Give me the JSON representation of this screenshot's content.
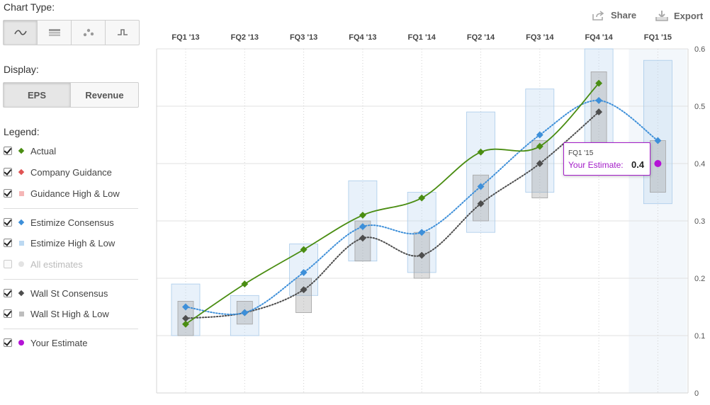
{
  "panel": {
    "chart_type_label": "Chart Type:",
    "chart_type_icons": [
      "line-chart-icon",
      "table-icon",
      "scatter-icon",
      "step-chart-icon"
    ],
    "display_label": "Display:",
    "display_options": [
      "EPS",
      "Revenue"
    ],
    "display_selected": "EPS",
    "legend_label": "Legend:",
    "legend": [
      {
        "label": "Actual",
        "checked": true,
        "marker": "diamond",
        "color": "#4a8d12"
      },
      {
        "label": "Company Guidance",
        "checked": true,
        "marker": "diamond",
        "color": "#e05353"
      },
      {
        "label": "Guidance High & Low",
        "checked": true,
        "marker": "square",
        "color": "#f5b6b6"
      },
      {
        "label": "Estimize Consensus",
        "checked": true,
        "marker": "diamond",
        "color": "#3d8fd9"
      },
      {
        "label": "Estimize High & Low",
        "checked": true,
        "marker": "square",
        "color": "#bcd9f2"
      },
      {
        "label": "All estimates",
        "checked": false,
        "marker": "dot",
        "color": "#e3e3e3"
      },
      {
        "label": "Wall St Consensus",
        "checked": true,
        "marker": "diamond",
        "color": "#4d4d4d"
      },
      {
        "label": "Wall St High & Low",
        "checked": true,
        "marker": "square",
        "color": "#bdbdbd"
      },
      {
        "label": "Your Estimate",
        "checked": true,
        "marker": "dot",
        "color": "#b413d6"
      }
    ]
  },
  "toolbar": {
    "share_label": "Share",
    "export_label": "Export"
  },
  "tooltip": {
    "quarter": "FQ1 '15",
    "label": "Your Estimate:",
    "value": "0.4"
  },
  "chart_data": {
    "type": "line",
    "categories": [
      "FQ1 '13",
      "FQ2 '13",
      "FQ3 '13",
      "FQ4 '13",
      "FQ1 '14",
      "FQ2 '14",
      "FQ3 '14",
      "FQ4 '14",
      "FQ1 '15"
    ],
    "ylim": [
      0,
      0.6
    ],
    "yticks": [
      "0",
      "0.1",
      "0.2",
      "0.3",
      "0.4",
      "0.5",
      "0.6"
    ],
    "grid": true,
    "highlighted_category": "FQ1 '15",
    "series": [
      {
        "name": "Actual",
        "style": "solid",
        "color": "#4a8d12",
        "values": [
          0.12,
          0.19,
          0.25,
          0.31,
          0.34,
          0.42,
          0.43,
          0.54,
          null
        ]
      },
      {
        "name": "Estimize Consensus",
        "style": "dotted",
        "color": "#3d8fd9",
        "values": [
          0.15,
          0.14,
          0.21,
          0.29,
          0.28,
          0.36,
          0.45,
          0.51,
          0.44
        ]
      },
      {
        "name": "Wall St Consensus",
        "style": "dotted",
        "color": "#4d4d4d",
        "values": [
          0.13,
          0.14,
          0.18,
          0.27,
          0.24,
          0.33,
          0.4,
          0.49,
          null
        ]
      },
      {
        "name": "Your Estimate",
        "style": "point",
        "color": "#b413d6",
        "values": [
          null,
          null,
          null,
          null,
          null,
          null,
          null,
          null,
          0.4
        ]
      }
    ],
    "ranges": [
      {
        "name": "Estimize High & Low",
        "color": "#bcd9f2",
        "low": [
          0.1,
          0.1,
          0.17,
          0.23,
          0.21,
          0.28,
          0.35,
          0.4,
          0.33
        ],
        "high": [
          0.19,
          0.17,
          0.26,
          0.37,
          0.35,
          0.49,
          0.53,
          0.6,
          0.58
        ]
      },
      {
        "name": "Wall St High & Low",
        "color": "#bdbdbd",
        "low": [
          0.1,
          0.12,
          0.14,
          0.23,
          0.2,
          0.3,
          0.34,
          0.4,
          0.35
        ],
        "high": [
          0.16,
          0.16,
          0.2,
          0.3,
          0.28,
          0.38,
          0.44,
          0.56,
          0.44
        ]
      }
    ]
  }
}
